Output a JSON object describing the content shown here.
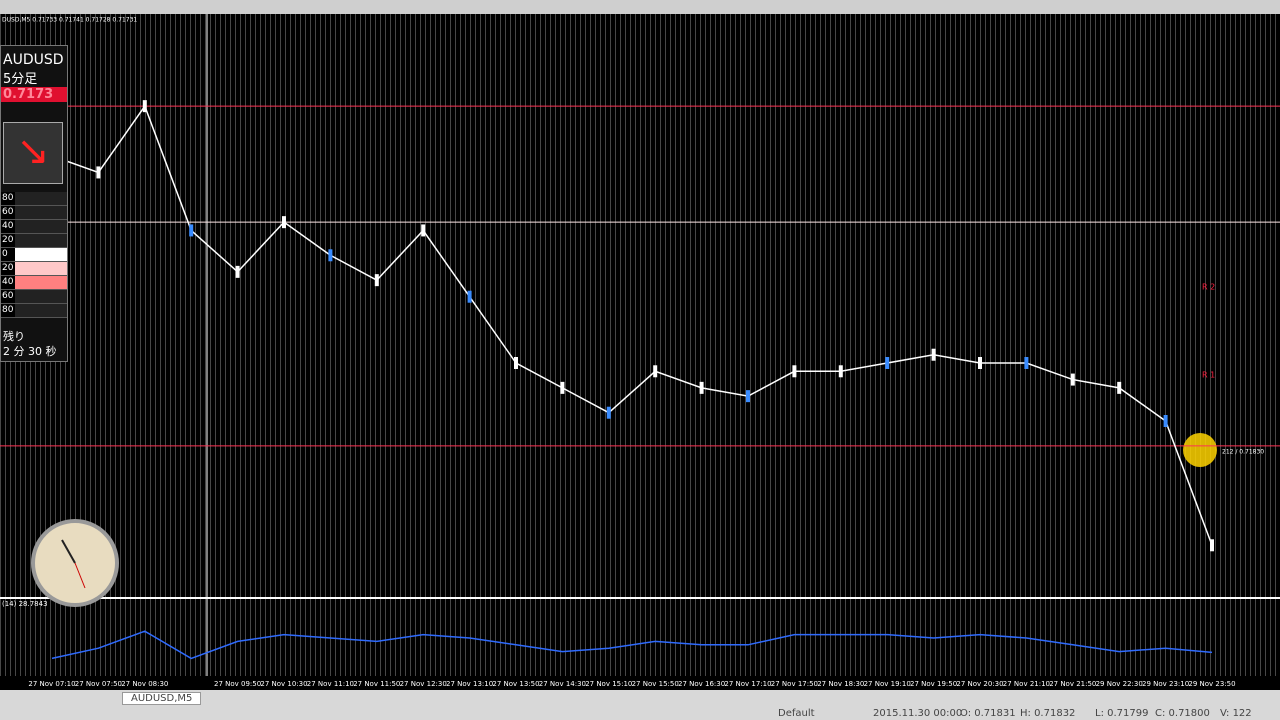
{
  "header": {
    "symbol_line": "DUSD,M5 0.71733 0.71741 0.71728 0.71731"
  },
  "panel": {
    "symbol": "AUDUSD",
    "timeframe": "5分足",
    "price": "0.7173",
    "scale": [
      80,
      60,
      40,
      20,
      0,
      20,
      40,
      60,
      80
    ],
    "remaining_label": "残り",
    "remaining_time": "2 分 30 秒"
  },
  "chart_data": [
    {
      "type": "line",
      "categories": [
        "27 Nov 07:10",
        "27 Nov 07:50",
        "27 Nov 08:30",
        null,
        "27 Nov 09:50",
        "27 Nov 10:30",
        "27 Nov 11:10",
        "27 Nov 11:50",
        "27 Nov 12:30",
        "27 Nov 13:10",
        "27 Nov 13:50",
        "27 Nov 14:30",
        "27 Nov 15:10",
        "27 Nov 15:50",
        "27 Nov 16:30",
        "27 Nov 17:10",
        "27 Nov 17:50",
        "27 Nov 18:30",
        "27 Nov 19:10",
        "27 Nov 19:50",
        "27 Nov 20:30",
        "27 Nov 21:10",
        "27 Nov 21:50",
        "29 Nov 22:30",
        "29 Nov 23:10",
        "29 Nov 23:50"
      ],
      "series": [
        {
          "name": "AUDUSD,M5",
          "color": "#ffffff",
          "values": [
            0.7218,
            0.7216,
            0.7224,
            0.7209,
            0.7204,
            0.721,
            0.7206,
            0.7203,
            0.7209,
            0.7201,
            0.7193,
            0.719,
            0.7187,
            0.7192,
            0.719,
            0.7189,
            0.7192,
            0.7192,
            0.7193,
            0.7194,
            0.7193,
            0.7193,
            0.7191,
            0.719,
            0.7186,
            0.7171
          ]
        }
      ],
      "ylim": [
        0.7165,
        0.7235
      ],
      "levels": [
        {
          "value": 0.7224,
          "color": "#ff3355"
        },
        {
          "value": 0.721,
          "color": "#ffe8e8"
        },
        {
          "value": 0.7183,
          "color": "#ff3355",
          "label": "212 / 0.71830"
        }
      ],
      "pivot_labels": [
        "R 2",
        "R 1"
      ]
    },
    {
      "type": "line",
      "title": "(14) 28.7843",
      "series": [
        {
          "name": "RSI",
          "color": "#2f6bff",
          "values": [
            20,
            35,
            60,
            20,
            45,
            55,
            50,
            45,
            55,
            50,
            40,
            30,
            35,
            45,
            40,
            40,
            55,
            55,
            55,
            50,
            55,
            50,
            40,
            30,
            35,
            28.7843
          ]
        }
      ],
      "ylim": [
        0,
        100
      ]
    }
  ],
  "tab": "AUDUSD,M5",
  "status_bar": {
    "profile": "Default",
    "time": "2015.11.30 00:00",
    "open": "O: 0.71831",
    "high": "H: 0.71832",
    "low": "L: 0.71799",
    "close": "C: 0.71800",
    "volume": "V: 122"
  }
}
